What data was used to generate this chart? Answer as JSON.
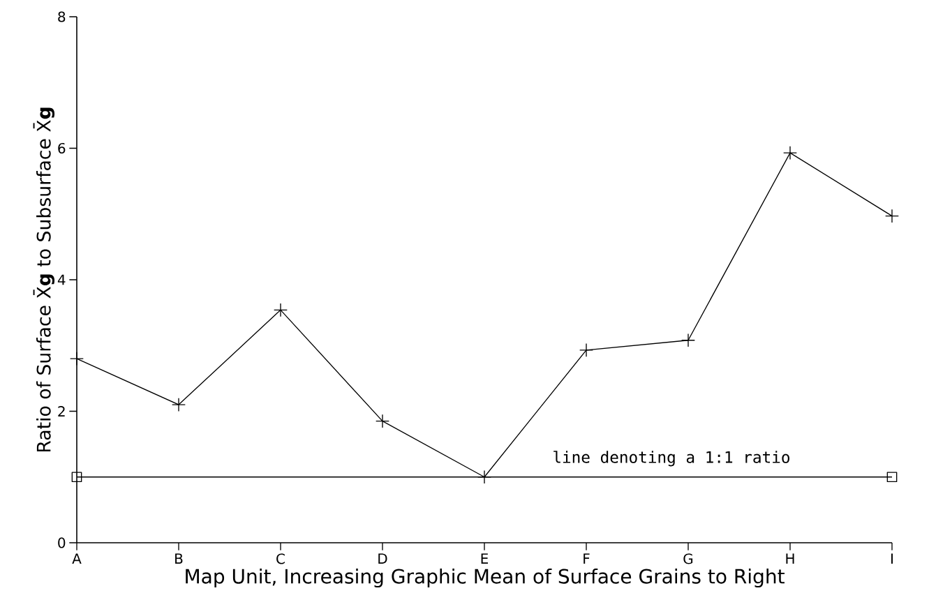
{
  "chart_data": {
    "type": "line",
    "xlabel": "Map Unit, Increasing Graphic Mean of Surface Grains to Right",
    "ylabel": "Ratio of Surface X̄**g** to Subsurface X̄**g**",
    "categories": [
      "A",
      "B",
      "C",
      "D",
      "E",
      "F",
      "G",
      "H",
      "I"
    ],
    "series": [
      {
        "color": "#000000",
        "marker": "cross",
        "values": [
          2.8,
          2.1,
          3.54,
          1.85,
          1.0,
          2.93,
          3.08,
          5.93,
          4.97
        ]
      },
      {
        "color": "#000000",
        "marker": "square",
        "x": [
          "A",
          "I"
        ],
        "values": [
          1,
          1
        ]
      }
    ],
    "line_style": "solid",
    "ylim": [
      0,
      8
    ],
    "yticks": [
      0,
      2,
      4,
      6,
      8
    ],
    "grid": false,
    "annotations": [
      {
        "text": "line denoting a 1:1 ratio",
        "x": "F",
        "y": 1
      }
    ]
  }
}
